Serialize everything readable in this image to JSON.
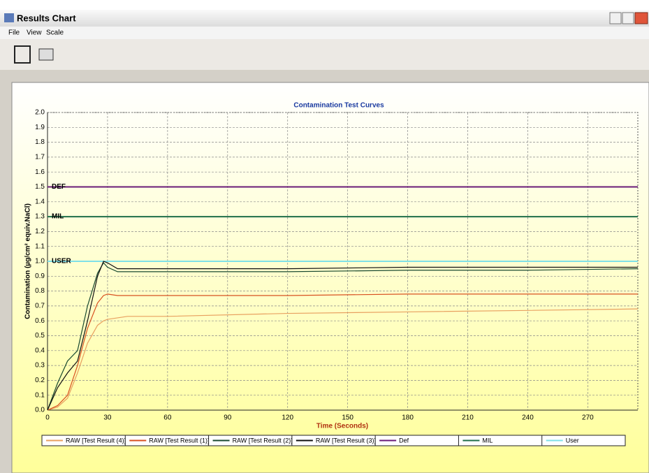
{
  "window": {
    "title": "Results Chart",
    "menu": [
      "File",
      "View",
      "Scale"
    ]
  },
  "chart_data": {
    "type": "line",
    "title": "Contamination Test Curves",
    "xlabel": "Time (Seconds)",
    "ylabel": "Contamination (µg/cm² equiv.NaCl)",
    "x": [
      0,
      5,
      10,
      15,
      20,
      25,
      28,
      30,
      35,
      40,
      60,
      120,
      180,
      240,
      295
    ],
    "series": [
      {
        "name": "RAW [Test Result (4)]",
        "color": "#e8a060",
        "values": [
          0,
          0.02,
          0.08,
          0.25,
          0.45,
          0.57,
          0.6,
          0.61,
          0.62,
          0.63,
          0.63,
          0.65,
          0.66,
          0.67,
          0.68
        ]
      },
      {
        "name": "RAW [Test Result (1)]",
        "color": "#d85020",
        "values": [
          0,
          0.03,
          0.1,
          0.3,
          0.55,
          0.72,
          0.77,
          0.78,
          0.77,
          0.77,
          0.77,
          0.77,
          0.78,
          0.78,
          0.78
        ]
      },
      {
        "name": "RAW [Test Result (2)]",
        "color": "#1a4a30",
        "values": [
          0,
          0.18,
          0.33,
          0.4,
          0.7,
          0.92,
          0.99,
          0.96,
          0.93,
          0.93,
          0.93,
          0.93,
          0.94,
          0.94,
          0.95
        ]
      },
      {
        "name": "RAW [Test Result (3)]",
        "color": "#101010",
        "values": [
          0,
          0.15,
          0.25,
          0.33,
          0.6,
          0.9,
          1.0,
          0.99,
          0.95,
          0.95,
          0.95,
          0.95,
          0.96,
          0.96,
          0.96
        ]
      }
    ],
    "limits": [
      {
        "name": "Def",
        "label": "DEF",
        "color": "#6a1b78",
        "value": 1.5
      },
      {
        "name": "MIL",
        "label": "MIL",
        "color": "#1f6e4a",
        "value": 1.3
      },
      {
        "name": "User",
        "label": "USER",
        "color": "#7fe0e8",
        "value": 1.0
      }
    ],
    "xlim": [
      0,
      295
    ],
    "xticks": [
      0,
      30,
      60,
      90,
      120,
      150,
      180,
      210,
      240,
      270
    ],
    "ylim": [
      0,
      2
    ],
    "yticks": [
      {
        "value": 0,
        "label": "0.0"
      },
      {
        "value": 0.1,
        "label": "0.1"
      },
      {
        "value": 0.2,
        "label": "0.2"
      },
      {
        "value": 0.3,
        "label": "0.3"
      },
      {
        "value": 0.4,
        "label": "0.4"
      },
      {
        "value": 0.5,
        "label": "0.5"
      },
      {
        "value": 0.6,
        "label": "0.6"
      },
      {
        "value": 0.7,
        "label": "0.7"
      },
      {
        "value": 0.8,
        "label": "0.8"
      },
      {
        "value": 0.9,
        "label": "0.9"
      },
      {
        "value": 1,
        "label": "1.0"
      },
      {
        "value": 1.1,
        "label": "1.1"
      },
      {
        "value": 1.2,
        "label": "1.2"
      },
      {
        "value": 1.3,
        "label": "1.3"
      },
      {
        "value": 1.4,
        "label": "1.4"
      },
      {
        "value": 1.5,
        "label": "1.5"
      },
      {
        "value": 1.6,
        "label": "1.6"
      },
      {
        "value": 1.7,
        "label": "1.7"
      },
      {
        "value": 1.8,
        "label": "1.8"
      },
      {
        "value": 1.9,
        "label": "1.9"
      },
      {
        "value": 2,
        "label": "2.0"
      }
    ],
    "grid": true,
    "legend": "bottom"
  }
}
